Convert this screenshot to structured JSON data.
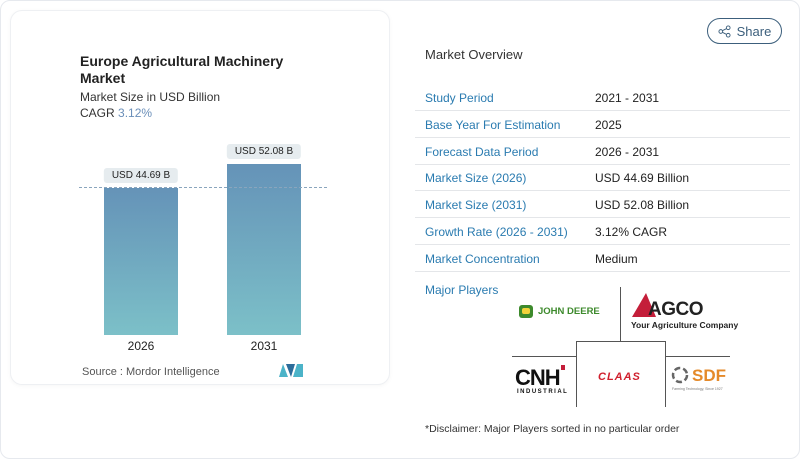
{
  "chart_data": {
    "type": "bar",
    "title": "Europe Agricultural Machinery Market",
    "subtitle": "Market Size in USD Billion",
    "cagr_label": "CAGR",
    "cagr_value": "3.12%",
    "categories": [
      "2026",
      "2031"
    ],
    "values": [
      44.69,
      52.08
    ],
    "data_labels": [
      "USD 44.69 B",
      "USD 52.08 B"
    ],
    "source": "Source :  Mordor Intelligence",
    "colors": {
      "bar_top": "#6593b8",
      "bar_bottom": "#7cc0c8"
    }
  },
  "share_label": "Share",
  "overview": {
    "heading": "Market Overview",
    "rows": [
      {
        "label": "Study Period",
        "value": "2021 - 2031"
      },
      {
        "label": "Base Year For Estimation",
        "value": "2025"
      },
      {
        "label": "Forecast Data Period",
        "value": "2026 - 2031"
      },
      {
        "label": "Market Size (2026)",
        "value": "USD 44.69 Billion"
      },
      {
        "label": "Market Size (2031)",
        "value": "USD 52.08 Billion"
      },
      {
        "label": "Growth Rate (2026 - 2031)",
        "value": "3.12% CAGR"
      },
      {
        "label": "Market Concentration",
        "value": "Medium"
      }
    ]
  },
  "players": {
    "heading": "Major Players",
    "john_deere": "JOHN DEERE",
    "agco": "AGCO",
    "agco_tagline": "Your Agriculture Company",
    "cnh": "CNH",
    "cnh_sub": "INDUSTRIAL",
    "claas": "CLAAS",
    "sdf": "SDF",
    "sdf_tagline": "Farming Technology, Since 1927",
    "disclaimer": "*Disclaimer: Major Players sorted in no particular order"
  }
}
